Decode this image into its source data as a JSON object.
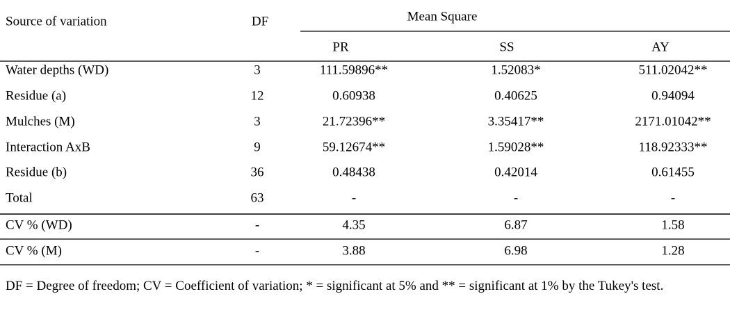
{
  "table": {
    "header": {
      "source": "Source of variation",
      "df": "DF",
      "mean_square": "Mean Square",
      "columns": [
        "PR",
        "SS",
        "AY"
      ]
    },
    "rows": [
      [
        "Water depths (WD)",
        "3",
        "111.59896**",
        "1.52083*",
        "511.02042**"
      ],
      [
        "Residue (a)",
        "12",
        "0.60938",
        "0.40625",
        "0.94094"
      ],
      [
        "Mulches (M)",
        "3",
        "21.72396**",
        "3.35417**",
        "2171.01042**"
      ],
      [
        "Interaction AxB",
        "9",
        "59.12674**",
        "1.59028**",
        "118.92333**"
      ],
      [
        "Residue (b)",
        "36",
        "0.48438",
        "0.42014",
        "0.61455"
      ],
      [
        "Total",
        "63",
        "-",
        "-",
        "-"
      ],
      [
        "CV % (WD)",
        "-",
        "4.35",
        "6.87",
        "1.58"
      ],
      [
        "CV % (M)",
        "-",
        "3.88",
        "6.98",
        "1.28"
      ]
    ]
  },
  "footnote": "DF = Degree of freedom; CV = Coefficient of variation; * = significant at 5% and ** = significant at 1% by the Tukey's test."
}
